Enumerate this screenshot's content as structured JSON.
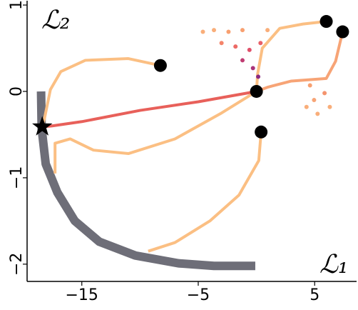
{
  "chart_data": {
    "type": "line",
    "xlabel": "ℒ₁",
    "ylabel": "ℒ₂",
    "xlim": [
      -19.7,
      8.6
    ],
    "ylim": [
      -2.2,
      1.05
    ],
    "xticks": [
      {
        "value": -15,
        "label": "−15"
      },
      {
        "value": -5,
        "label": "−5"
      },
      5
    ],
    "yticks": [
      1,
      0,
      {
        "value": -1,
        "label": "−1"
      },
      {
        "value": -2,
        "label": "−2"
      }
    ],
    "series": [
      {
        "color": "#6e6e78",
        "width": 12,
        "x": [
          -18.5,
          -18.45,
          -18.1,
          -17.1,
          -15.6,
          -13.5,
          -10.4,
          -6.7,
          -3.65,
          -0.1
        ],
        "values": [
          0.0,
          -0.43,
          -0.84,
          -1.17,
          -1.5,
          -1.74,
          -1.9,
          -1.99,
          -2.02,
          -2.02
        ]
      },
      {
        "color": "#fbbf83",
        "width": 4,
        "x": [
          -8.25,
          -11.0,
          -14.7,
          -16.8,
          -17.7,
          -18.2,
          -18.4
        ],
        "values": [
          0.3,
          0.38,
          0.36,
          0.23,
          0.02,
          -0.31,
          -0.41
        ]
      },
      {
        "color": "#fbbf83",
        "width": 4,
        "x": [
          6.0,
          4.0,
          2.0,
          0.5,
          0.1,
          0.0
        ],
        "values": [
          0.81,
          0.78,
          0.73,
          0.5,
          0.2,
          0.0
        ]
      },
      {
        "color": "#f7a476",
        "width": 4,
        "x": [
          7.4,
          6.8,
          6.0,
          3.0,
          1.0,
          0.0
        ],
        "values": [
          0.69,
          0.35,
          0.15,
          0.12,
          0.05,
          0.0
        ]
      },
      {
        "color": "#fbbf83",
        "width": 4,
        "x": [
          0.0,
          -3.0,
          -7.0,
          -11.0,
          -14.0,
          -16.0,
          -17.3,
          -17.3
        ],
        "values": [
          0.0,
          -0.25,
          -0.55,
          -0.72,
          -0.68,
          -0.55,
          -0.6,
          -0.95
        ]
      },
      {
        "color": "#fbbf83",
        "width": 4,
        "x": [
          0.4,
          0.2,
          -1.5,
          -4.0,
          -7.0,
          -9.3
        ],
        "values": [
          -0.47,
          -0.8,
          -1.2,
          -1.5,
          -1.75,
          -1.85
        ]
      },
      {
        "color": "#e8605a",
        "width": 4,
        "x": [
          0.0,
          -5.0,
          -10.0,
          -15.0,
          -17.6,
          -18.4
        ],
        "values": [
          0.0,
          -0.12,
          -0.22,
          -0.35,
          -0.4,
          -0.41
        ]
      }
    ],
    "cloud": {
      "x": [
        -4.6,
        -3.65,
        -2.4,
        -1.2,
        0.95,
        -3.0,
        -1.8,
        -0.6,
        0.35,
        -1.2,
        -0.3,
        0.15,
        4.6,
        4.95,
        5.25,
        5.85,
        6.3,
        4.3
      ],
      "values": [
        0.69,
        0.71,
        0.69,
        0.71,
        0.71,
        0.56,
        0.52,
        0.48,
        0.56,
        0.36,
        0.27,
        0.17,
        0.07,
        -0.1,
        -0.26,
        -0.02,
        -0.18,
        -0.18
      ],
      "colors": [
        "#f9ae7a",
        "#f9ae7a",
        "#f8a070",
        "#f8a070",
        "#f9ae7a",
        "#f4846a",
        "#ec6a66",
        "#e0506a",
        "#e86068",
        "#c03c72",
        "#a8327a",
        "#8a2a80",
        "#f8a070",
        "#f7a476",
        "#f9ae7a",
        "#f4946e",
        "#f9ae7a",
        "#f9ae7a"
      ]
    },
    "starts": {
      "color": "#000000",
      "x": [
        -8.25,
        6.0,
        7.4,
        0.0,
        0.4
      ],
      "values": [
        0.3,
        0.81,
        0.69,
        0.0,
        -0.47
      ]
    },
    "optimum": {
      "color": "#000000",
      "x": [
        -18.4
      ],
      "values": [
        -0.41
      ]
    }
  }
}
